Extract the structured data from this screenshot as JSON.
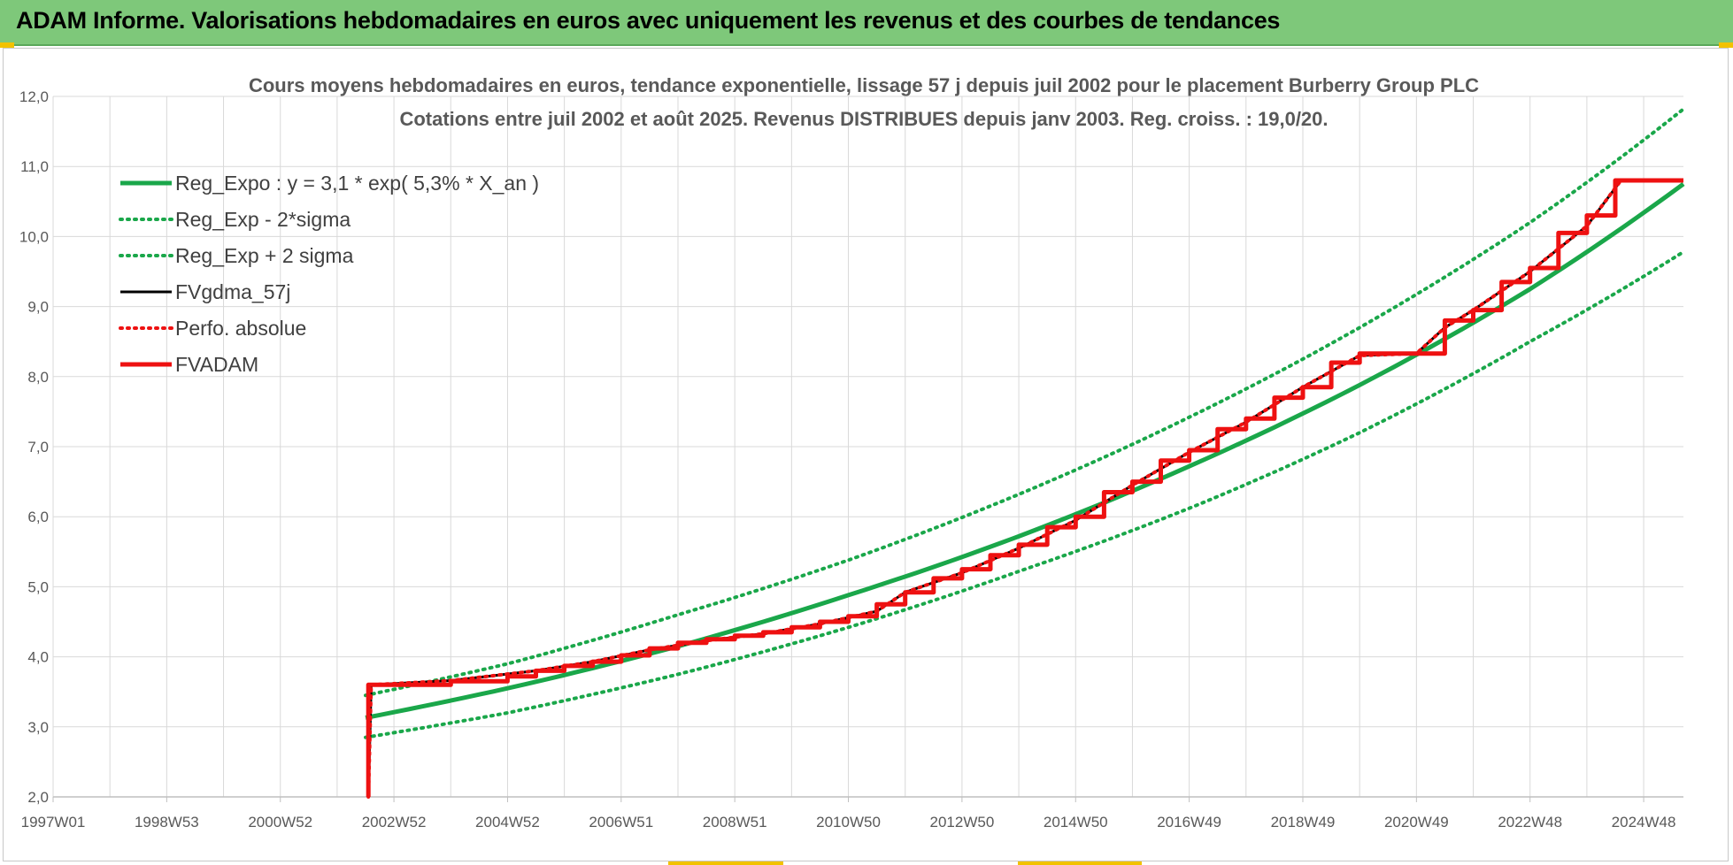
{
  "header": {
    "title": "ADAM Informe. Valorisations hebdomadaires en euros avec uniquement les revenus et des courbes de tendances"
  },
  "colors": {
    "header_bg": "#7ec87a",
    "accent_yellow": "#f2c200",
    "reg_green": "#1aa74a",
    "fvadam_red": "#ee1111",
    "fvgdma_black": "#000000"
  },
  "chart_data": {
    "type": "line",
    "title": "Cours moyens hebdomadaires en euros, tendance exponentielle, lissage 57 j depuis juil 2002 pour le placement Burberry Group PLC",
    "subtitle": "Cotations entre juil 2002 et août 2025. Revenus DISTRIBUES depuis janv 2003. Reg. croiss. : 19,0/20.",
    "xlabel": "",
    "ylabel": "",
    "ylim": [
      2,
      12
    ],
    "xlim": [
      1997.0,
      2025.7
    ],
    "grid": true,
    "legend_position": "top-left",
    "y_ticks": [
      "2,0",
      "3,0",
      "4,0",
      "5,0",
      "6,0",
      "7,0",
      "8,0",
      "9,0",
      "10,0",
      "11,0",
      "12,0"
    ],
    "x_ticks": [
      {
        "x": 1997.0,
        "label": "1997W01"
      },
      {
        "x": 1999.0,
        "label": "1998W53"
      },
      {
        "x": 2001.0,
        "label": "2000W52"
      },
      {
        "x": 2003.0,
        "label": "2002W52"
      },
      {
        "x": 2005.0,
        "label": "2004W52"
      },
      {
        "x": 2007.0,
        "label": "2006W51"
      },
      {
        "x": 2009.0,
        "label": "2008W51"
      },
      {
        "x": 2011.0,
        "label": "2010W50"
      },
      {
        "x": 2013.0,
        "label": "2012W50"
      },
      {
        "x": 2015.0,
        "label": "2014W50"
      },
      {
        "x": 2017.0,
        "label": "2016W49"
      },
      {
        "x": 2019.0,
        "label": "2018W49"
      },
      {
        "x": 2021.0,
        "label": "2020W49"
      },
      {
        "x": 2023.0,
        "label": "2022W48"
      },
      {
        "x": 2025.0,
        "label": "2024W48"
      }
    ],
    "series": [
      {
        "name": "Reg_Expo : y = 3,1 * exp( 5,3% *  X_an )",
        "style": "solid-thick",
        "color": "#1aa74a",
        "x": [
          2002.5,
          2005.0,
          2008.0,
          2011.0,
          2014.0,
          2017.0,
          2020.0,
          2023.0,
          2025.7
        ],
        "values": [
          3.13,
          3.55,
          4.15,
          4.88,
          5.72,
          6.72,
          7.88,
          9.25,
          10.75
        ]
      },
      {
        "name": "Reg_Exp - 2*sigma",
        "style": "dotted",
        "color": "#1aa74a",
        "x": [
          2002.5,
          2005.0,
          2008.0,
          2011.0,
          2014.0,
          2017.0,
          2020.0,
          2023.0,
          2025.7
        ],
        "values": [
          2.85,
          3.2,
          3.75,
          4.42,
          5.22,
          6.12,
          7.2,
          8.5,
          9.78
        ]
      },
      {
        "name": "Reg_Exp + 2 sigma",
        "style": "dotted",
        "color": "#1aa74a",
        "x": [
          2002.5,
          2005.0,
          2008.0,
          2011.0,
          2014.0,
          2017.0,
          2020.0,
          2023.0,
          2025.7
        ],
        "values": [
          3.45,
          3.9,
          4.6,
          5.38,
          6.32,
          7.42,
          8.7,
          10.2,
          11.82
        ]
      },
      {
        "name": "FVgdma_57j",
        "style": "solid-thin",
        "color": "#000000",
        "x": [
          2002.55,
          2002.6,
          2004.0,
          2005.5,
          2006.5,
          2007.5,
          2008.5,
          2009.5,
          2010.5,
          2011.5,
          2012.0,
          2013.0,
          2014.0,
          2015.0,
          2016.0,
          2017.0,
          2018.0,
          2019.0,
          2020.0,
          2021.0,
          2021.5,
          2022.0,
          2023.0,
          2024.0,
          2024.6,
          2025.7
        ],
        "values": [
          2.0,
          3.6,
          3.66,
          3.8,
          3.93,
          4.1,
          4.23,
          4.33,
          4.47,
          4.65,
          4.92,
          5.2,
          5.55,
          5.95,
          6.45,
          6.92,
          7.35,
          7.85,
          8.3,
          8.33,
          8.7,
          8.95,
          9.5,
          10.15,
          10.8,
          10.8
        ]
      },
      {
        "name": "Perfo. absolue",
        "style": "dotted",
        "color": "#ee1111",
        "x": [
          2002.55,
          2002.6,
          2004.0,
          2005.5,
          2006.5,
          2007.5,
          2008.5,
          2009.5,
          2010.5,
          2011.5,
          2012.0,
          2013.0,
          2014.0,
          2015.0,
          2016.0,
          2017.0,
          2018.0,
          2019.0,
          2020.0,
          2021.0,
          2021.5,
          2022.0,
          2023.0,
          2024.0,
          2024.6,
          2025.7
        ],
        "values": [
          2.0,
          3.6,
          3.66,
          3.8,
          3.93,
          4.1,
          4.23,
          4.33,
          4.47,
          4.65,
          4.92,
          5.2,
          5.55,
          5.95,
          6.45,
          6.92,
          7.35,
          7.85,
          8.3,
          8.33,
          8.7,
          8.95,
          9.5,
          10.15,
          10.8,
          10.8
        ]
      },
      {
        "name": "FVADAM",
        "style": "step-thick",
        "color": "#ee1111",
        "x": [
          2002.55,
          2002.55,
          2004.0,
          2005.0,
          2005.5,
          2006.0,
          2006.5,
          2007.0,
          2007.5,
          2008.0,
          2008.5,
          2009.0,
          2009.5,
          2010.0,
          2010.5,
          2011.0,
          2011.5,
          2012.0,
          2012.5,
          2013.0,
          2013.5,
          2014.0,
          2014.5,
          2015.0,
          2015.5,
          2016.0,
          2016.5,
          2017.0,
          2017.5,
          2018.0,
          2018.5,
          2019.0,
          2019.5,
          2020.0,
          2021.2,
          2021.5,
          2022.0,
          2022.5,
          2023.0,
          2023.5,
          2024.0,
          2024.5,
          2025.0,
          2025.7
        ],
        "values": [
          2.0,
          3.6,
          3.65,
          3.72,
          3.8,
          3.87,
          3.93,
          4.02,
          4.12,
          4.2,
          4.25,
          4.3,
          4.35,
          4.42,
          4.5,
          4.58,
          4.75,
          4.92,
          5.12,
          5.25,
          5.45,
          5.6,
          5.85,
          6.0,
          6.35,
          6.5,
          6.8,
          6.95,
          7.25,
          7.4,
          7.7,
          7.85,
          8.2,
          8.33,
          8.33,
          8.8,
          8.95,
          9.35,
          9.55,
          10.05,
          10.3,
          10.8,
          10.8,
          10.8
        ]
      }
    ]
  }
}
